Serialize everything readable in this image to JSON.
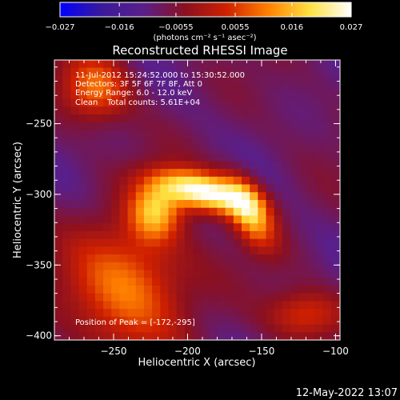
{
  "chart_data": {
    "type": "heatmap",
    "title": "Reconstructed RHESSI Image",
    "xlabel": "Heliocentric X (arcsec)",
    "ylabel": "Heliocentric Y (arcsec)",
    "xlim": [
      -290,
      -97
    ],
    "ylim": [
      -403,
      -205
    ],
    "x_ticks": [
      -250,
      -200,
      -150,
      -100
    ],
    "x_tick_labels": [
      "−250",
      "−200",
      "−150",
      "−100"
    ],
    "y_ticks": [
      -250,
      -300,
      -350,
      -400
    ],
    "y_tick_labels": [
      "−250",
      "−300",
      "−350",
      "−400"
    ],
    "colorbar": {
      "min": -0.027,
      "max": 0.027,
      "ticks": [
        -0.027,
        -0.016,
        -0.0055,
        0.0055,
        0.016,
        0.027
      ],
      "tick_labels": [
        "−0.027",
        "−0.016",
        "−0.0055",
        "0.0055",
        "0.016",
        "0.027"
      ],
      "unit_label": "(photons cm⁻² s⁻¹ asec⁻²)",
      "colors": [
        "#0000ff",
        "#3a1a9a",
        "#5a1f8a",
        "#8a1020",
        "#d02000",
        "#ff8000",
        "#ffe040",
        "#ffffff"
      ]
    },
    "annotations": {
      "time_range": "11-Jul-2012 15:24:52.000 to 15:30:52.000",
      "detectors": "Detectors: 3F 5F 6F 7F 8F, Att 0",
      "energy": "Energy Range: 6.0 - 12.0 keV",
      "method": "Clean",
      "counts": "Total counts: 5.61E+04",
      "peak": "Position of Peak = [-172,-295]"
    },
    "peak_position": [
      -172,
      -295
    ],
    "sources": [
      {
        "x": -190,
        "y": -298,
        "intensity": 0.027,
        "sx": 22,
        "sy": 9,
        "angle": -14
      },
      {
        "x": -158,
        "y": -312,
        "intensity": 0.016,
        "sx": 9,
        "sy": 18,
        "angle": 25
      },
      {
        "x": -222,
        "y": -312,
        "intensity": 0.013,
        "sx": 12,
        "sy": 14,
        "angle": 0
      },
      {
        "x": -240,
        "y": -365,
        "intensity": 0.011,
        "sx": 28,
        "sy": 32,
        "angle": 0
      },
      {
        "x": -262,
        "y": -225,
        "intensity": 0.009,
        "sx": 16,
        "sy": 16,
        "angle": 0
      },
      {
        "x": -120,
        "y": -385,
        "intensity": 0.005,
        "sx": 18,
        "sy": 12,
        "angle": 0
      }
    ]
  },
  "footer": {
    "date": "12-May-2022 13:07"
  }
}
